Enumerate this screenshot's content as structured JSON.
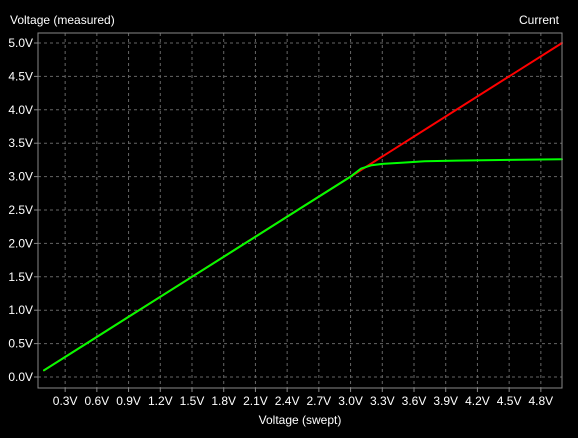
{
  "chart_data": {
    "type": "line",
    "title_left": "Voltage (measured)",
    "title_right": "Current",
    "xlabel": "Voltage (swept)",
    "xlim": [
      0.1,
      5.0
    ],
    "ylim": [
      0.0,
      5.0
    ],
    "x_ticks": [
      {
        "value": 0.3,
        "label": "0.3V"
      },
      {
        "value": 0.6,
        "label": "0.6V"
      },
      {
        "value": 0.9,
        "label": "0.9V"
      },
      {
        "value": 1.2,
        "label": "1.2V"
      },
      {
        "value": 1.5,
        "label": "1.5V"
      },
      {
        "value": 1.8,
        "label": "1.8V"
      },
      {
        "value": 2.1,
        "label": "2.1V"
      },
      {
        "value": 2.4,
        "label": "2.4V"
      },
      {
        "value": 2.7,
        "label": "2.7V"
      },
      {
        "value": 3.0,
        "label": "3.0V"
      },
      {
        "value": 3.3,
        "label": "3.3V"
      },
      {
        "value": 3.6,
        "label": "3.6V"
      },
      {
        "value": 3.9,
        "label": "3.9V"
      },
      {
        "value": 4.2,
        "label": "4.2V"
      },
      {
        "value": 4.5,
        "label": "4.5V"
      },
      {
        "value": 4.8,
        "label": "4.8V"
      }
    ],
    "y_ticks": [
      {
        "value": 0.0,
        "label": "0.0V"
      },
      {
        "value": 0.5,
        "label": "0.5V"
      },
      {
        "value": 1.0,
        "label": "1.0V"
      },
      {
        "value": 1.5,
        "label": "1.5V"
      },
      {
        "value": 2.0,
        "label": "2.0V"
      },
      {
        "value": 2.5,
        "label": "2.5V"
      },
      {
        "value": 3.0,
        "label": "3.0V"
      },
      {
        "value": 3.5,
        "label": "3.5V"
      },
      {
        "value": 4.0,
        "label": "4.0V"
      },
      {
        "value": 4.5,
        "label": "4.5V"
      },
      {
        "value": 5.0,
        "label": "5.0V"
      }
    ],
    "grid": true,
    "series": [
      {
        "color": "#ff0000",
        "x": [
          0.1,
          3.15,
          5.0
        ],
        "y": [
          0.1,
          3.15,
          5.0
        ]
      },
      {
        "color": "#00ff00",
        "x": [
          0.1,
          0.5,
          1.0,
          1.5,
          2.0,
          2.5,
          3.0,
          3.1,
          3.2,
          3.3,
          3.5,
          3.7,
          4.0,
          4.5,
          5.0
        ],
        "y": [
          0.1,
          0.5,
          1.0,
          1.5,
          2.0,
          2.5,
          3.0,
          3.12,
          3.17,
          3.19,
          3.21,
          3.23,
          3.24,
          3.25,
          3.26
        ]
      }
    ]
  }
}
